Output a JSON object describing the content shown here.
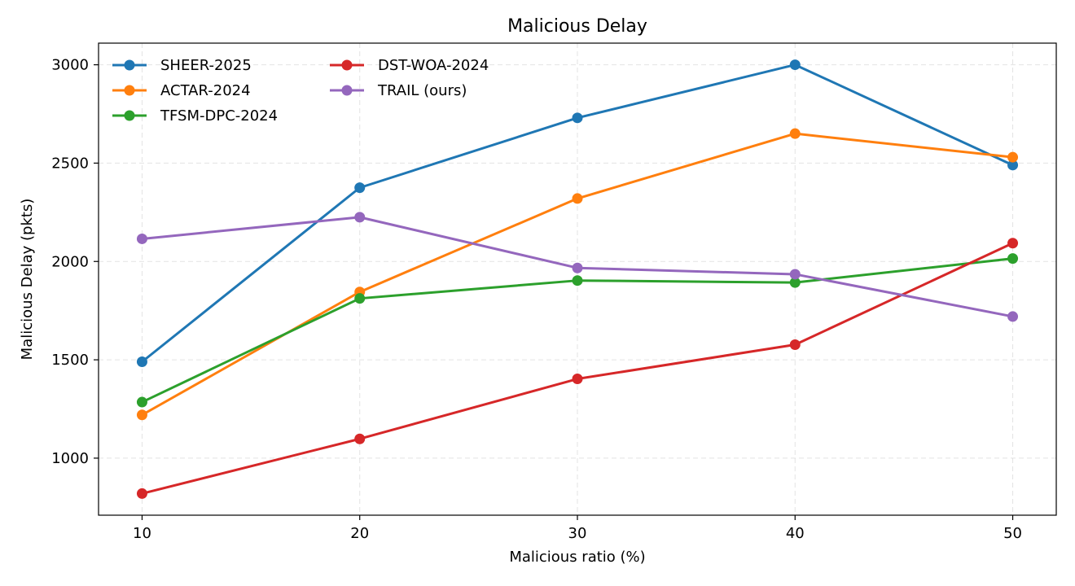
{
  "chart_data": {
    "type": "line",
    "title": "Malicious Delay",
    "xlabel": "Malicious ratio (%)",
    "ylabel": "Malicious Delay (pkts)",
    "x": [
      10,
      20,
      30,
      40,
      50
    ],
    "xticks": [
      "10",
      "20",
      "30",
      "40",
      "50"
    ],
    "yticks": [
      1000,
      1500,
      2000,
      2500,
      3000
    ],
    "xlim": [
      8,
      52
    ],
    "ylim": [
      710,
      3110
    ],
    "grid": true,
    "legend_position": "top-left",
    "series": [
      {
        "name": "SHEER-2025",
        "color": "#1f77b4",
        "values": [
          1490,
          2375,
          2730,
          3000,
          2490
        ]
      },
      {
        "name": "ACTAR-2024",
        "color": "#ff7f0e",
        "values": [
          1220,
          1845,
          2320,
          2650,
          2530
        ]
      },
      {
        "name": "TFSM-DPC-2024",
        "color": "#2ca02c",
        "values": [
          1285,
          1812,
          1903,
          1893,
          2015
        ]
      },
      {
        "name": "DST-WOA-2024",
        "color": "#d62728",
        "values": [
          820,
          1098,
          1403,
          1577,
          2093
        ]
      },
      {
        "name": "TRAIL (ours)",
        "color": "#9467bd",
        "values": [
          2115,
          2225,
          1967,
          1935,
          1720
        ]
      }
    ]
  }
}
